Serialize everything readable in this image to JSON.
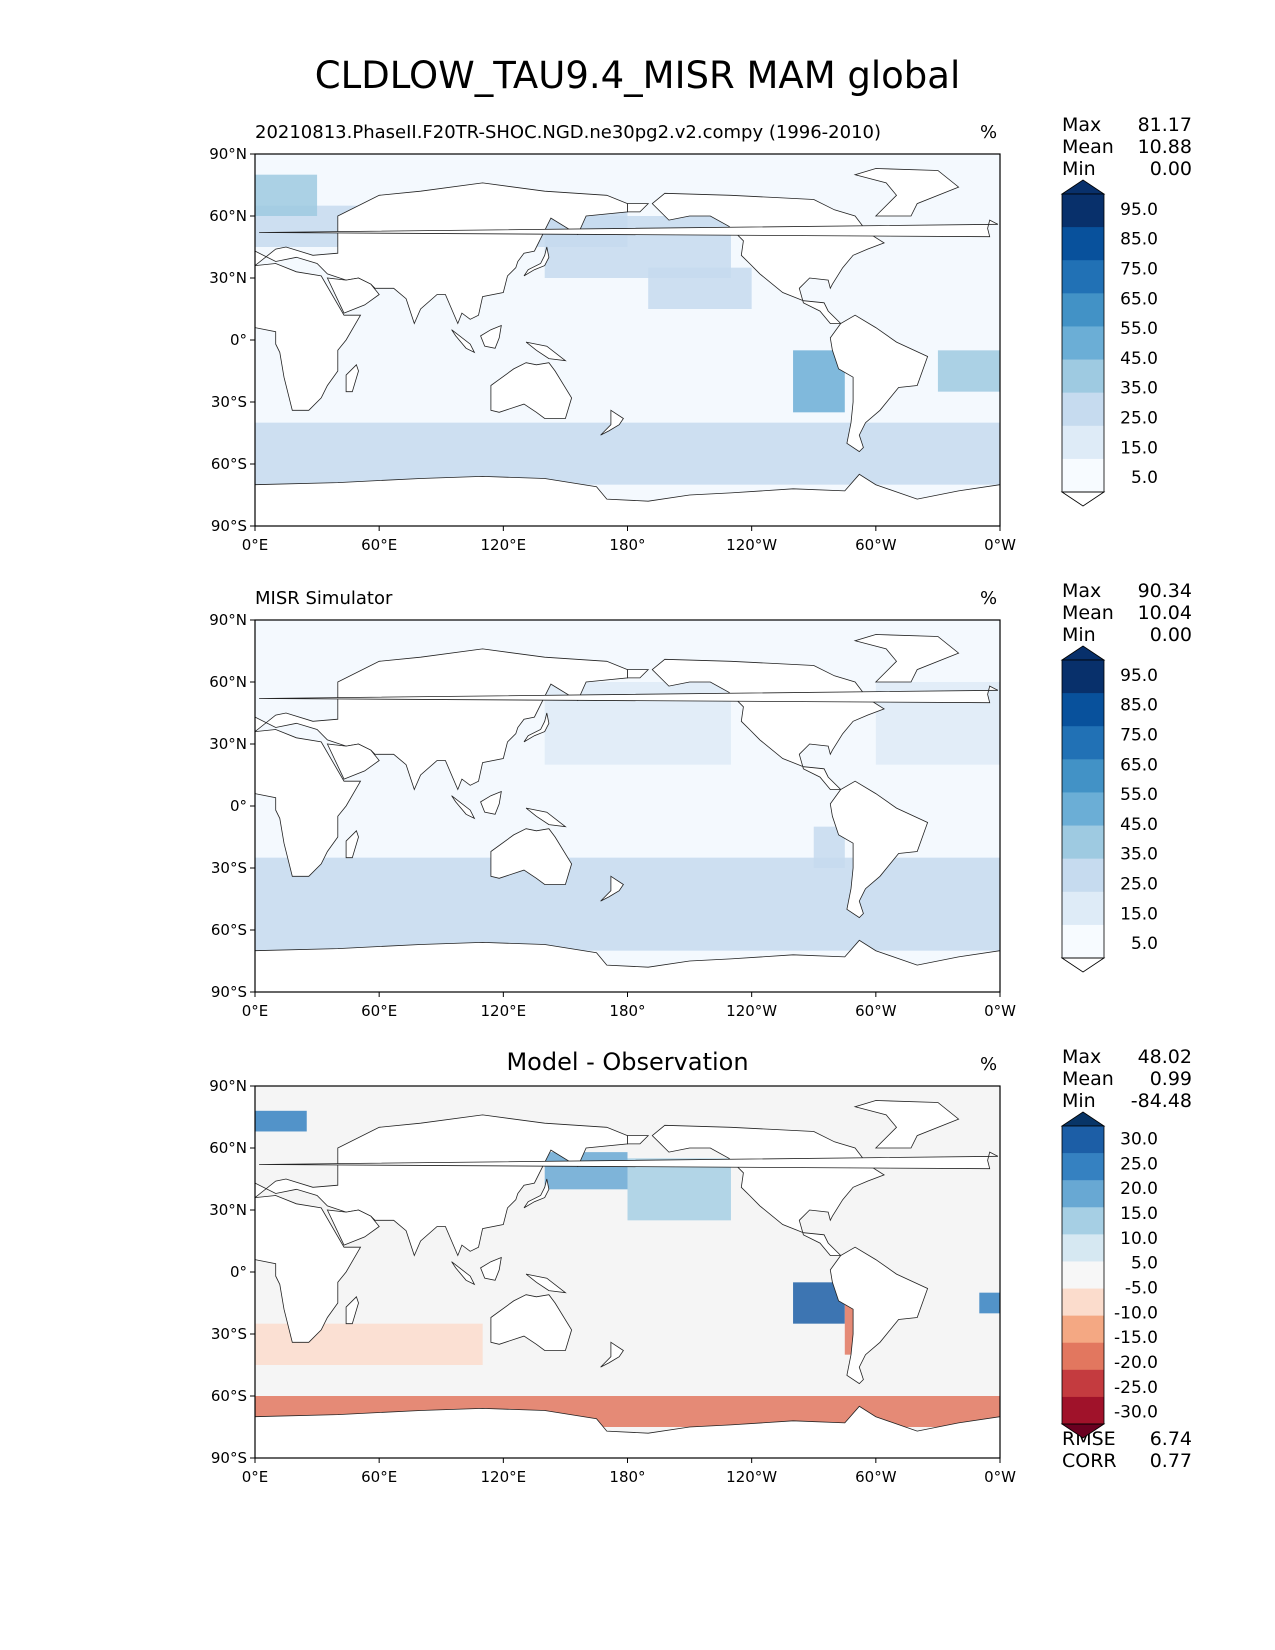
{
  "figure": {
    "title": "CLDLOW_TAU9.4_MISR MAM global"
  },
  "panels": [
    {
      "id": "model",
      "title": "20210813.PhaseII.F20TR-SHOC.NGD.ne30pg2.v2.compy (1996-2010)",
      "units": "%",
      "stats": {
        "max_label": "Max",
        "max": "81.17",
        "mean_label": "Mean",
        "mean": "10.88",
        "min_label": "Min",
        "min": "0.00"
      },
      "colorbar": {
        "labels": [
          "95.0",
          "85.0",
          "75.0",
          "65.0",
          "55.0",
          "45.0",
          "35.0",
          "25.0",
          "15.0",
          "5.0"
        ],
        "colors": [
          "#08306b",
          "#08519c",
          "#2171b5",
          "#4292c6",
          "#6baed6",
          "#9ecae1",
          "#c6dbef",
          "#deebf7",
          "#f7fbff"
        ],
        "over_color": "#08306b",
        "under_color": "#ffffff"
      }
    },
    {
      "id": "obs",
      "title": "MISR Simulator",
      "units": "%",
      "stats": {
        "max_label": "Max",
        "max": "90.34",
        "mean_label": "Mean",
        "mean": "10.04",
        "min_label": "Min",
        "min": "0.00"
      },
      "colorbar": {
        "labels": [
          "95.0",
          "85.0",
          "75.0",
          "65.0",
          "55.0",
          "45.0",
          "35.0",
          "25.0",
          "15.0",
          "5.0"
        ],
        "colors": [
          "#08306b",
          "#08519c",
          "#2171b5",
          "#4292c6",
          "#6baed6",
          "#9ecae1",
          "#c6dbef",
          "#deebf7",
          "#f7fbff"
        ],
        "over_color": "#08306b",
        "under_color": "#ffffff"
      }
    },
    {
      "id": "diff",
      "title": "Model - Observation",
      "units": "%",
      "stats": {
        "max_label": "Max",
        "max": "48.02",
        "mean_label": "Mean",
        "mean": "0.99",
        "min_label": "Min",
        "min": "-84.48"
      },
      "extra_stats": {
        "rmse_label": "RMSE",
        "rmse": "6.74",
        "corr_label": "CORR",
        "corr": "0.77"
      },
      "colorbar": {
        "labels": [
          "30.0",
          "25.0",
          "20.0",
          "15.0",
          "10.0",
          "5.0",
          "-5.0",
          "-10.0",
          "-15.0",
          "-20.0",
          "-25.0",
          "-30.0"
        ],
        "colors": [
          "#1c5ea6",
          "#3581c1",
          "#68a8d3",
          "#a6cfe4",
          "#d6e8f2",
          "#f7f7f7",
          "#fbdccc",
          "#f4a883",
          "#e2775f",
          "#c43b3f",
          "#a0122a"
        ],
        "over_color": "#083567",
        "under_color": "#6a0020"
      }
    }
  ],
  "map": {
    "lat_ticks": [
      "90°N",
      "60°N",
      "30°N",
      "0°",
      "30°S",
      "60°S",
      "90°S"
    ],
    "lon_ticks": [
      "0°E",
      "60°E",
      "120°E",
      "180°",
      "120°W",
      "60°W",
      "0°W"
    ],
    "ocean_fill": "#f4f9fe",
    "land_fill": "#ffffff",
    "diff_ocean_fill": "#f5f5f5"
  }
}
